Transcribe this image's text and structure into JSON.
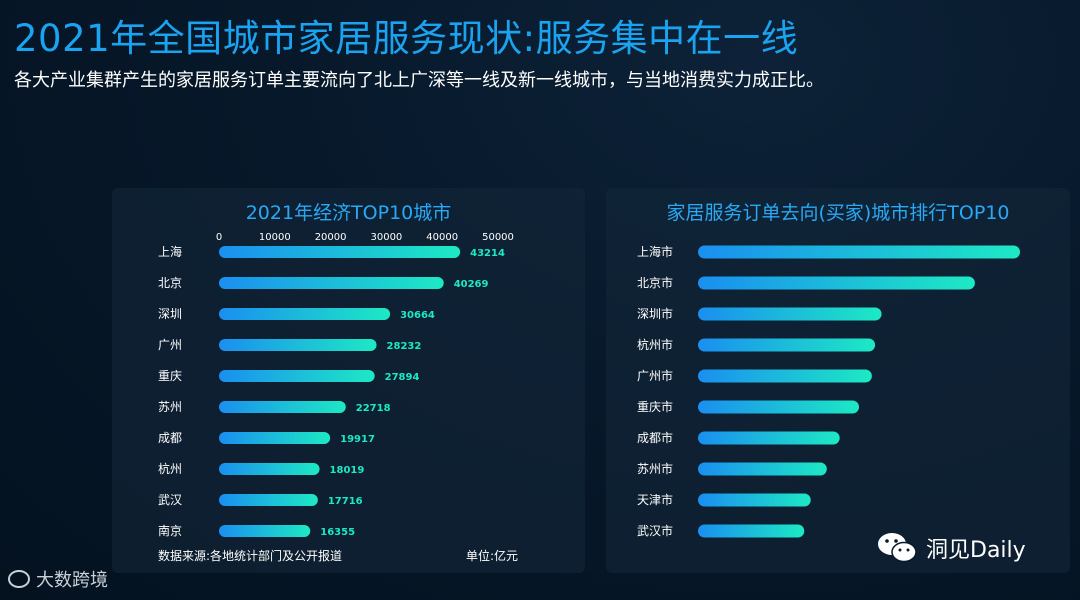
{
  "header": {
    "title": "2021年全国城市家居服务现状:服务集中在一线",
    "subtitle": "各大产业集群产生的家居服务订单主要流向了北上广深等一线及新一线城市，与当地消费实力成正比。"
  },
  "chart_data": [
    {
      "type": "bar",
      "orientation": "horizontal",
      "title": "2021年经济TOP10城市",
      "categories": [
        "上海",
        "北京",
        "深圳",
        "广州",
        "重庆",
        "苏州",
        "成都",
        "杭州",
        "武汉",
        "南京"
      ],
      "values": [
        43214,
        40269,
        30664,
        28232,
        27894,
        22718,
        19917,
        18019,
        17716,
        16355
      ],
      "xlim": [
        0,
        50000
      ],
      "xticks": [
        "0",
        "10000",
        "20000",
        "30000",
        "40000",
        "50000"
      ],
      "source": "数据来源:各地统计部门及公开报道",
      "unit": "单位:亿元",
      "bar_gradient": [
        "#1a8ff0",
        "#1de9c4"
      ],
      "label_color": "#1de9c4"
    },
    {
      "type": "bar",
      "orientation": "horizontal",
      "title": "家居服务订单去向(买家)城市排行TOP10",
      "categories": [
        "上海市",
        "北京市",
        "深圳市",
        "杭州市",
        "广州市",
        "重庆市",
        "成都市",
        "苏州市",
        "天津市",
        "武汉市"
      ],
      "values": [
        100,
        86,
        57,
        55,
        54,
        50,
        44,
        40,
        35,
        33
      ],
      "xlim": [
        0,
        100
      ],
      "bar_gradient": [
        "#1a8ff0",
        "#1de9c4"
      ]
    }
  ],
  "watermarks": {
    "left": "大数跨境",
    "right": "洞见Daily"
  }
}
